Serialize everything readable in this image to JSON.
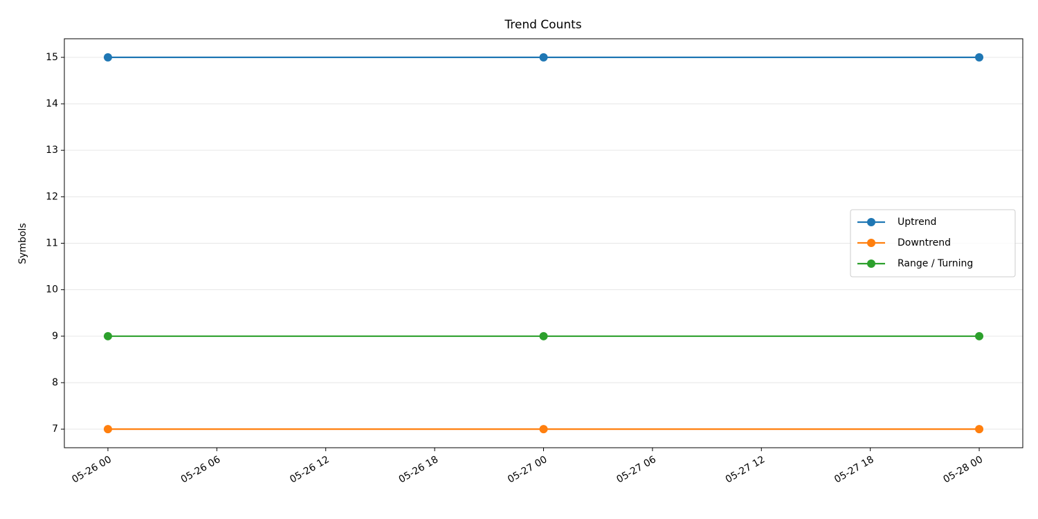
{
  "chart_data": {
    "type": "line",
    "title": "Trend Counts",
    "y_label": "Symbols",
    "x": [
      "05-26 00",
      "05-27 00",
      "05-28 00"
    ],
    "series": [
      {
        "name": "Uptrend",
        "color": "#1f77b4",
        "values": [
          15,
          15,
          15
        ]
      },
      {
        "name": "Downtrend",
        "color": "#ff7f0e",
        "values": [
          7,
          7,
          7
        ]
      },
      {
        "name": "Range / Turning",
        "color": "#2ca02c",
        "values": [
          9,
          9,
          9
        ]
      }
    ],
    "xlim": [
      "05-25 21:36",
      "05-28 02:24"
    ],
    "xticks": [
      "05-26 00",
      "05-26 06",
      "05-26 12",
      "05-26 18",
      "05-27 00",
      "05-27 06",
      "05-27 12",
      "05-27 18",
      "05-28 00"
    ],
    "ylim": [
      6.6,
      15.4
    ],
    "yticks": [
      7,
      8,
      9,
      10,
      11,
      12,
      13,
      14,
      15
    ],
    "grid": true,
    "legend": "center right",
    "marker": "o"
  }
}
